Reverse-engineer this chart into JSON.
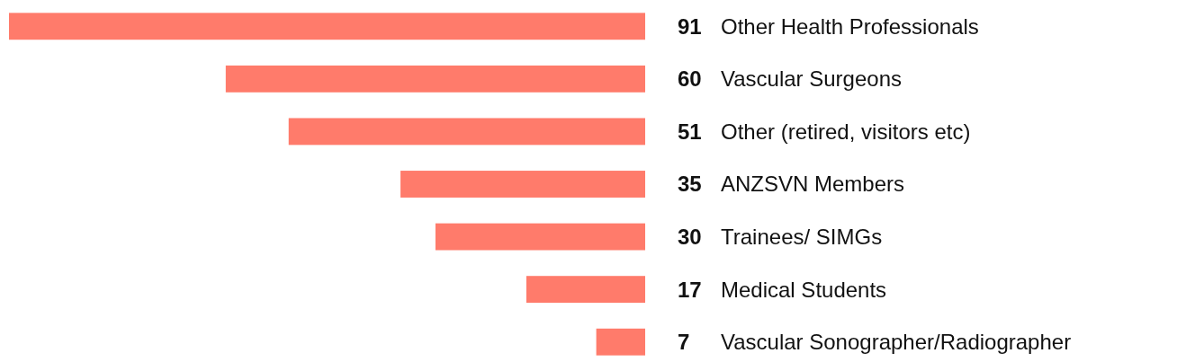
{
  "chart_data": {
    "type": "bar",
    "orientation": "horizontal",
    "data_labels": true,
    "color": "#ff7b6b",
    "categories": [
      "Other Health Professionals",
      "Vascular Surgeons",
      "Other (retired, visitors etc)",
      "ANZSVN Members",
      "Trainees/ SIMGs",
      "Medical Students",
      "Vascular Sonographer/Radiographer"
    ],
    "values": [
      91,
      60,
      51,
      35,
      30,
      17,
      7
    ]
  }
}
